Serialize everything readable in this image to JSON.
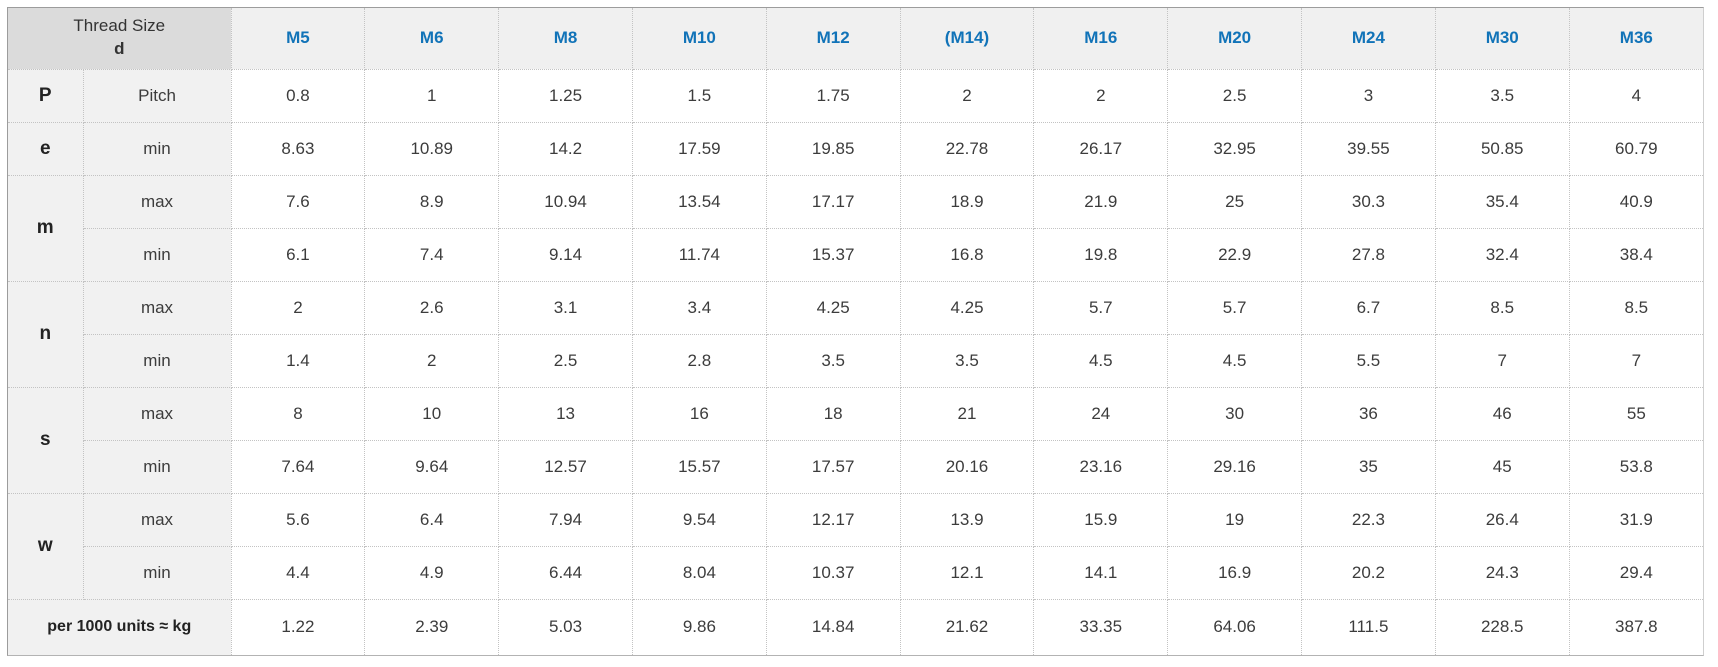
{
  "table": {
    "corner": {
      "title": "Thread Size",
      "symbol": "d"
    },
    "columns": [
      "M5",
      "M6",
      "M8",
      "M10",
      "M12",
      "(M14)",
      "M16",
      "M20",
      "M24",
      "M30",
      "M36"
    ],
    "groups": [
      {
        "letter": "P",
        "rows": [
          {
            "label": "Pitch",
            "values": [
              "0.8",
              "1",
              "1.25",
              "1.5",
              "1.75",
              "2",
              "2",
              "2.5",
              "3",
              "3.5",
              "4"
            ]
          }
        ]
      },
      {
        "letter": "e",
        "rows": [
          {
            "label": "min",
            "values": [
              "8.63",
              "10.89",
              "14.2",
              "17.59",
              "19.85",
              "22.78",
              "26.17",
              "32.95",
              "39.55",
              "50.85",
              "60.79"
            ]
          }
        ]
      },
      {
        "letter": "m",
        "rows": [
          {
            "label": "max",
            "values": [
              "7.6",
              "8.9",
              "10.94",
              "13.54",
              "17.17",
              "18.9",
              "21.9",
              "25",
              "30.3",
              "35.4",
              "40.9"
            ]
          },
          {
            "label": "min",
            "values": [
              "6.1",
              "7.4",
              "9.14",
              "11.74",
              "15.37",
              "16.8",
              "19.8",
              "22.9",
              "27.8",
              "32.4",
              "38.4"
            ]
          }
        ]
      },
      {
        "letter": "n",
        "rows": [
          {
            "label": "max",
            "values": [
              "2",
              "2.6",
              "3.1",
              "3.4",
              "4.25",
              "4.25",
              "5.7",
              "5.7",
              "6.7",
              "8.5",
              "8.5"
            ]
          },
          {
            "label": "min",
            "values": [
              "1.4",
              "2",
              "2.5",
              "2.8",
              "3.5",
              "3.5",
              "4.5",
              "4.5",
              "5.5",
              "7",
              "7"
            ]
          }
        ]
      },
      {
        "letter": "s",
        "rows": [
          {
            "label": "max",
            "values": [
              "8",
              "10",
              "13",
              "16",
              "18",
              "21",
              "24",
              "30",
              "36",
              "46",
              "55"
            ]
          },
          {
            "label": "min",
            "values": [
              "7.64",
              "9.64",
              "12.57",
              "15.57",
              "17.57",
              "20.16",
              "23.16",
              "29.16",
              "35",
              "45",
              "53.8"
            ]
          }
        ]
      },
      {
        "letter": "w",
        "rows": [
          {
            "label": "max",
            "values": [
              "5.6",
              "6.4",
              "7.94",
              "9.54",
              "12.17",
              "13.9",
              "15.9",
              "19",
              "22.3",
              "26.4",
              "31.9"
            ]
          },
          {
            "label": "min",
            "values": [
              "4.4",
              "4.9",
              "6.44",
              "8.04",
              "10.37",
              "12.1",
              "14.1",
              "16.9",
              "20.2",
              "24.3",
              "29.4"
            ]
          }
        ]
      }
    ],
    "footer": {
      "label": "per 1000 units ≈ kg",
      "values": [
        "1.22",
        "2.39",
        "5.03",
        "9.86",
        "14.84",
        "21.62",
        "33.35",
        "64.06",
        "111.5",
        "228.5",
        "387.8"
      ]
    }
  },
  "colors": {
    "header_text": "#1173b8",
    "corner_bg": "#dbdbdb",
    "header_bg": "#f0f0f0",
    "label_bg": "#f1f1f1",
    "border_dotted": "#c3c3c3",
    "outer_border_top": "#9c9c9c",
    "outer_border_left": "#9c9c9c",
    "outer_border_right": "#cfcfcf",
    "outer_border_bottom": "#b3b3b3",
    "text": "#3c3c3c"
  }
}
